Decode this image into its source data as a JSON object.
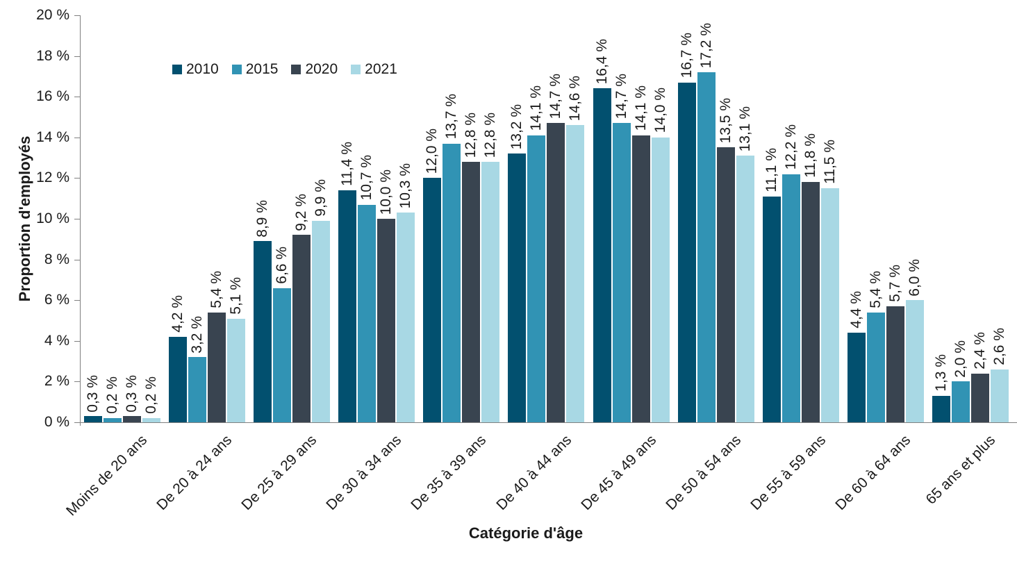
{
  "chart_data": {
    "type": "bar",
    "title": "",
    "xlabel": "Catégorie d'âge",
    "ylabel": "Proportion d'employés",
    "ylim": [
      0,
      20
    ],
    "ytick_step": 2,
    "yticks": [
      "0 %",
      "2 %",
      "4 %",
      "6 %",
      "8 %",
      "10 %",
      "12 %",
      "14 %",
      "16 %",
      "18 %",
      "20 %"
    ],
    "grid": false,
    "legend_position": "top-left",
    "axis_color": "#808080",
    "text_color": "#1a1a1a",
    "categories": [
      "Moins de 20 ans",
      "De 20 à 24 ans",
      "De 25 à 29 ans",
      "De 30 à 34 ans",
      "De 35 à 39 ans",
      "De 40 à 44 ans",
      "De 45 à 49 ans",
      "De 50 à 54 ans",
      "De 55 à 59 ans",
      "De 60 à 64 ans",
      "65 ans et plus"
    ],
    "series": [
      {
        "name": "2010",
        "color": "#02506F",
        "values": [
          0.3,
          4.2,
          8.9,
          11.4,
          12.0,
          13.2,
          16.4,
          16.7,
          11.1,
          4.4,
          1.3
        ],
        "labels": [
          "0,3 %",
          "4,2 %",
          "8,9 %",
          "11,4 %",
          "12,0 %",
          "13,2 %",
          "16,4 %",
          "16,7 %",
          "11,1 %",
          "4,4 %",
          "1,3 %"
        ]
      },
      {
        "name": "2015",
        "color": "#3193B4",
        "values": [
          0.2,
          3.2,
          6.6,
          10.7,
          13.7,
          14.1,
          14.7,
          17.2,
          12.2,
          5.4,
          2.0
        ],
        "labels": [
          "0,2 %",
          "3,2 %",
          "6,6 %",
          "10,7 %",
          "13,7 %",
          "14,1 %",
          "14,7 %",
          "17,2 %",
          "12,2 %",
          "5,4 %",
          "2,0 %"
        ]
      },
      {
        "name": "2020",
        "color": "#394450",
        "values": [
          0.3,
          5.4,
          9.2,
          10.0,
          12.8,
          14.7,
          14.1,
          13.5,
          11.8,
          5.7,
          2.4
        ],
        "labels": [
          "0,3 %",
          "5,4 %",
          "9,2 %",
          "10,0 %",
          "12,8 %",
          "14,7 %",
          "14,1 %",
          "13,5 %",
          "11,8 %",
          "5,7 %",
          "2,4 %"
        ]
      },
      {
        "name": "2021",
        "color": "#A8D8E4",
        "values": [
          0.2,
          5.1,
          9.9,
          10.3,
          12.8,
          14.6,
          14.0,
          13.1,
          11.5,
          6.0,
          2.6
        ],
        "labels": [
          "0,2 %",
          "5,1 %",
          "9,9 %",
          "10,3 %",
          "12,8 %",
          "14,6 %",
          "14,0 %",
          "13,1 %",
          "11,5 %",
          "6,0 %",
          "2,6 %"
        ]
      }
    ]
  }
}
